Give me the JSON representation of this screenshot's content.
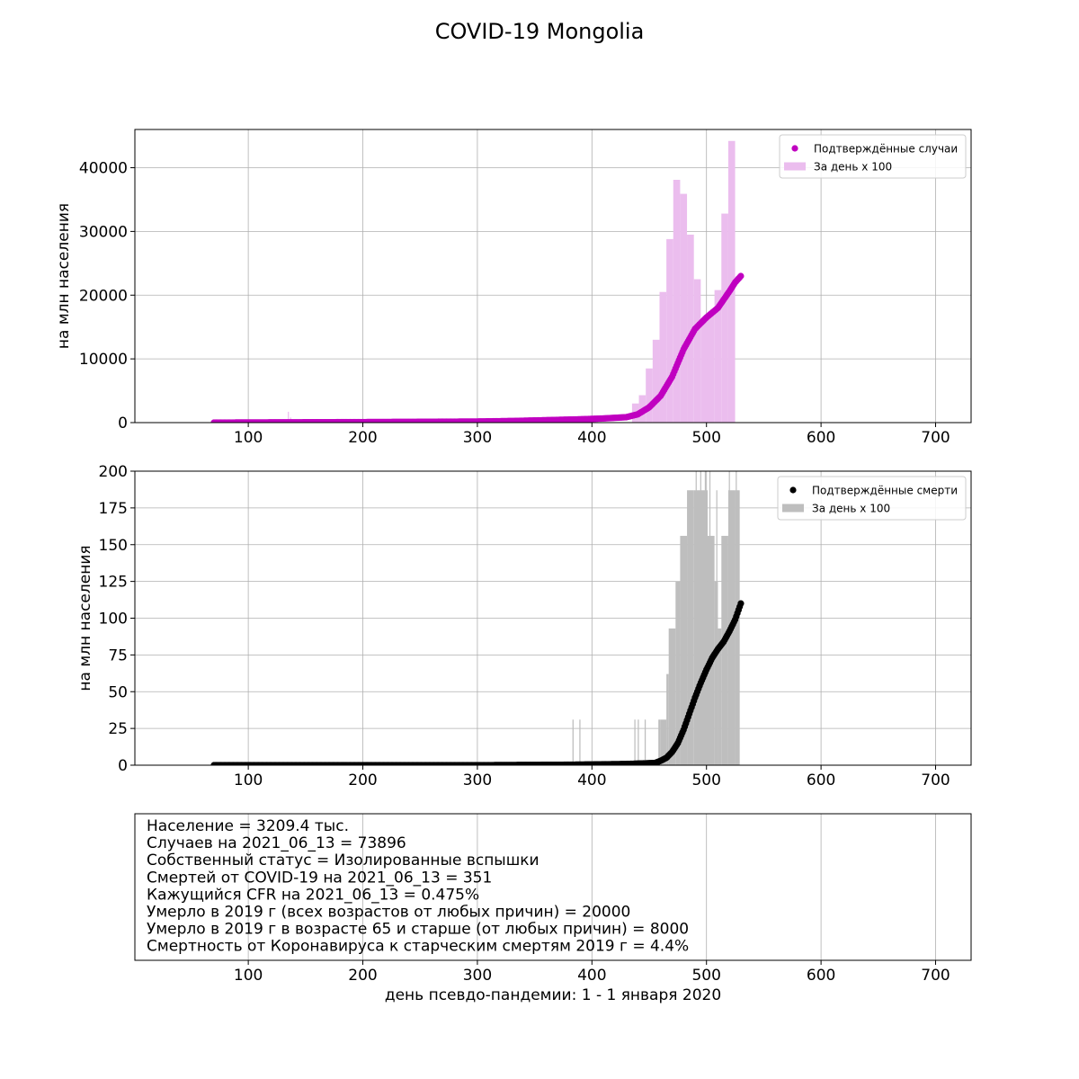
{
  "figure": {
    "title": "COVID-19 Mongolia",
    "xlabel": "день псевдо-пандемии: 1 - 1 января 2020",
    "colors": {
      "cases_points": "#c000c0",
      "cases_bars": "#ebbdee",
      "deaths_points": "#000000",
      "deaths_bars": "#bebebe",
      "grid": "#b0b0b0"
    }
  },
  "chart_data": [
    {
      "type": "scatter",
      "panel": "cases",
      "ylabel": "на млн населения",
      "xlim": [
        1,
        731
      ],
      "ylim": [
        0,
        46000
      ],
      "xticks": [
        100,
        200,
        300,
        400,
        500,
        600,
        700
      ],
      "yticks": [
        0,
        10000,
        20000,
        30000,
        40000
      ],
      "grid": true,
      "legend_position": "upper right",
      "legend": [
        {
          "label": "Подтверждённые случаи",
          "kind": "point",
          "color": "#c000c0"
        },
        {
          "label": "За день x 100",
          "kind": "bar",
          "color": "#ebbdee"
        }
      ],
      "series": [
        {
          "name": "Подтверждённые случаи",
          "type": "scatter",
          "x": [
            70,
            100,
            135,
            200,
            250,
            300,
            330,
            360,
            390,
            410,
            430,
            440,
            450,
            460,
            470,
            480,
            490,
            500,
            510,
            515,
            520,
            525,
            530
          ],
          "y": [
            0,
            20,
            40,
            80,
            120,
            170,
            250,
            380,
            520,
            650,
            850,
            1300,
            2400,
            4200,
            7200,
            11500,
            14700,
            16500,
            18000,
            19300,
            20600,
            22000,
            23000
          ]
        },
        {
          "name": "За день x 100",
          "type": "bar",
          "bins": [
            {
              "x0": 435,
              "x1": 441,
              "y": 3000
            },
            {
              "x0": 441,
              "x1": 447,
              "y": 4300
            },
            {
              "x0": 447,
              "x1": 453,
              "y": 8500
            },
            {
              "x0": 453,
              "x1": 459,
              "y": 13000
            },
            {
              "x0": 459,
              "x1": 465,
              "y": 20500
            },
            {
              "x0": 465,
              "x1": 471,
              "y": 28800
            },
            {
              "x0": 471,
              "x1": 477,
              "y": 38100
            },
            {
              "x0": 477,
              "x1": 483,
              "y": 35900
            },
            {
              "x0": 483,
              "x1": 489,
              "y": 29500
            },
            {
              "x0": 489,
              "x1": 495,
              "y": 22500
            },
            {
              "x0": 495,
              "x1": 501,
              "y": 16400
            },
            {
              "x0": 501,
              "x1": 507,
              "y": 17300
            },
            {
              "x0": 507,
              "x1": 513,
              "y": 20800
            },
            {
              "x0": 513,
              "x1": 519,
              "y": 32800
            },
            {
              "x0": 519,
              "x1": 525,
              "y": 44200
            }
          ],
          "spikes": [
            {
              "x": 135,
              "y": 1700
            },
            {
              "x": 137,
              "y": 800
            }
          ]
        }
      ]
    },
    {
      "type": "scatter",
      "panel": "deaths",
      "ylabel": "на млн населения",
      "xlim": [
        1,
        731
      ],
      "ylim": [
        0,
        200
      ],
      "xticks": [
        100,
        200,
        300,
        400,
        500,
        600,
        700
      ],
      "yticks": [
        0,
        25,
        50,
        75,
        100,
        125,
        150,
        175,
        200
      ],
      "grid": true,
      "legend_position": "upper right",
      "legend": [
        {
          "label": "Подтверждённые смерти",
          "kind": "point",
          "color": "#000000"
        },
        {
          "label": "За день x 100",
          "kind": "bar",
          "color": "#bebebe"
        }
      ],
      "series": [
        {
          "name": "Подтверждённые смерти",
          "type": "scatter",
          "x": [
            70,
            200,
            300,
            380,
            430,
            455,
            460,
            465,
            470,
            475,
            480,
            485,
            490,
            495,
            500,
            505,
            510,
            515,
            520,
            525,
            530
          ],
          "y": [
            0,
            0,
            0,
            0.3,
            0.8,
            1.5,
            3,
            5,
            9,
            15,
            24,
            35,
            46,
            56,
            65,
            73,
            79,
            84,
            91,
            99,
            110
          ]
        },
        {
          "name": "За день x 100",
          "type": "bar",
          "bins": [
            {
              "x0": 383,
              "x1": 384,
              "y": 31
            },
            {
              "x0": 389,
              "x1": 390,
              "y": 31
            },
            {
              "x0": 437,
              "x1": 438,
              "y": 31
            },
            {
              "x0": 440,
              "x1": 441,
              "y": 31
            },
            {
              "x0": 446,
              "x1": 447,
              "y": 31
            },
            {
              "x0": 458,
              "x1": 460,
              "y": 31
            },
            {
              "x0": 460,
              "x1": 465,
              "y": 31
            },
            {
              "x0": 465,
              "x1": 467,
              "y": 62
            },
            {
              "x0": 467,
              "x1": 473,
              "y": 93
            },
            {
              "x0": 473,
              "x1": 477,
              "y": 125
            },
            {
              "x0": 477,
              "x1": 483,
              "y": 156
            },
            {
              "x0": 483,
              "x1": 489,
              "y": 187
            },
            {
              "x0": 489,
              "x1": 495,
              "y": 187
            },
            {
              "x0": 495,
              "x1": 501,
              "y": 187
            },
            {
              "x0": 501,
              "x1": 507,
              "y": 156
            },
            {
              "x0": 507,
              "x1": 510,
              "y": 125
            },
            {
              "x0": 510,
              "x1": 513,
              "y": 93
            },
            {
              "x0": 513,
              "x1": 519,
              "y": 156
            },
            {
              "x0": 519,
              "x1": 525,
              "y": 187
            },
            {
              "x0": 525,
              "x1": 529,
              "y": 187
            }
          ],
          "spikes": [
            {
              "x": 491,
              "y": 218
            },
            {
              "x": 495,
              "y": 218
            },
            {
              "x": 499,
              "y": 218
            },
            {
              "x": 503,
              "y": 218
            },
            {
              "x": 509,
              "y": 187
            },
            {
              "x": 520,
              "y": 218
            },
            {
              "x": 526,
              "y": 218
            }
          ]
        }
      ]
    },
    {
      "type": "table",
      "panel": "info",
      "xlim": [
        1,
        731
      ],
      "xticks": [
        100,
        200,
        300,
        400,
        500,
        600,
        700
      ],
      "grid": true,
      "lines": [
        "Население = 3209.4 тыс.",
        "Случаев на 2021_06_13 = 73896",
        "Собственный статус = Изолированные вспышки",
        "Смертей от COVID-19 на 2021_06_13 = 351",
        "Кажущийся CFR на 2021_06_13 = 0.475%",
        "Умерло в 2019 г (всех возрастов от любых причин) = 20000",
        "Умерло в 2019 г в возрасте 65 и старше (от любых причин) = 8000",
        "Смертность от Коронавируса к старческим смертям 2019 г = 4.4%"
      ]
    }
  ]
}
